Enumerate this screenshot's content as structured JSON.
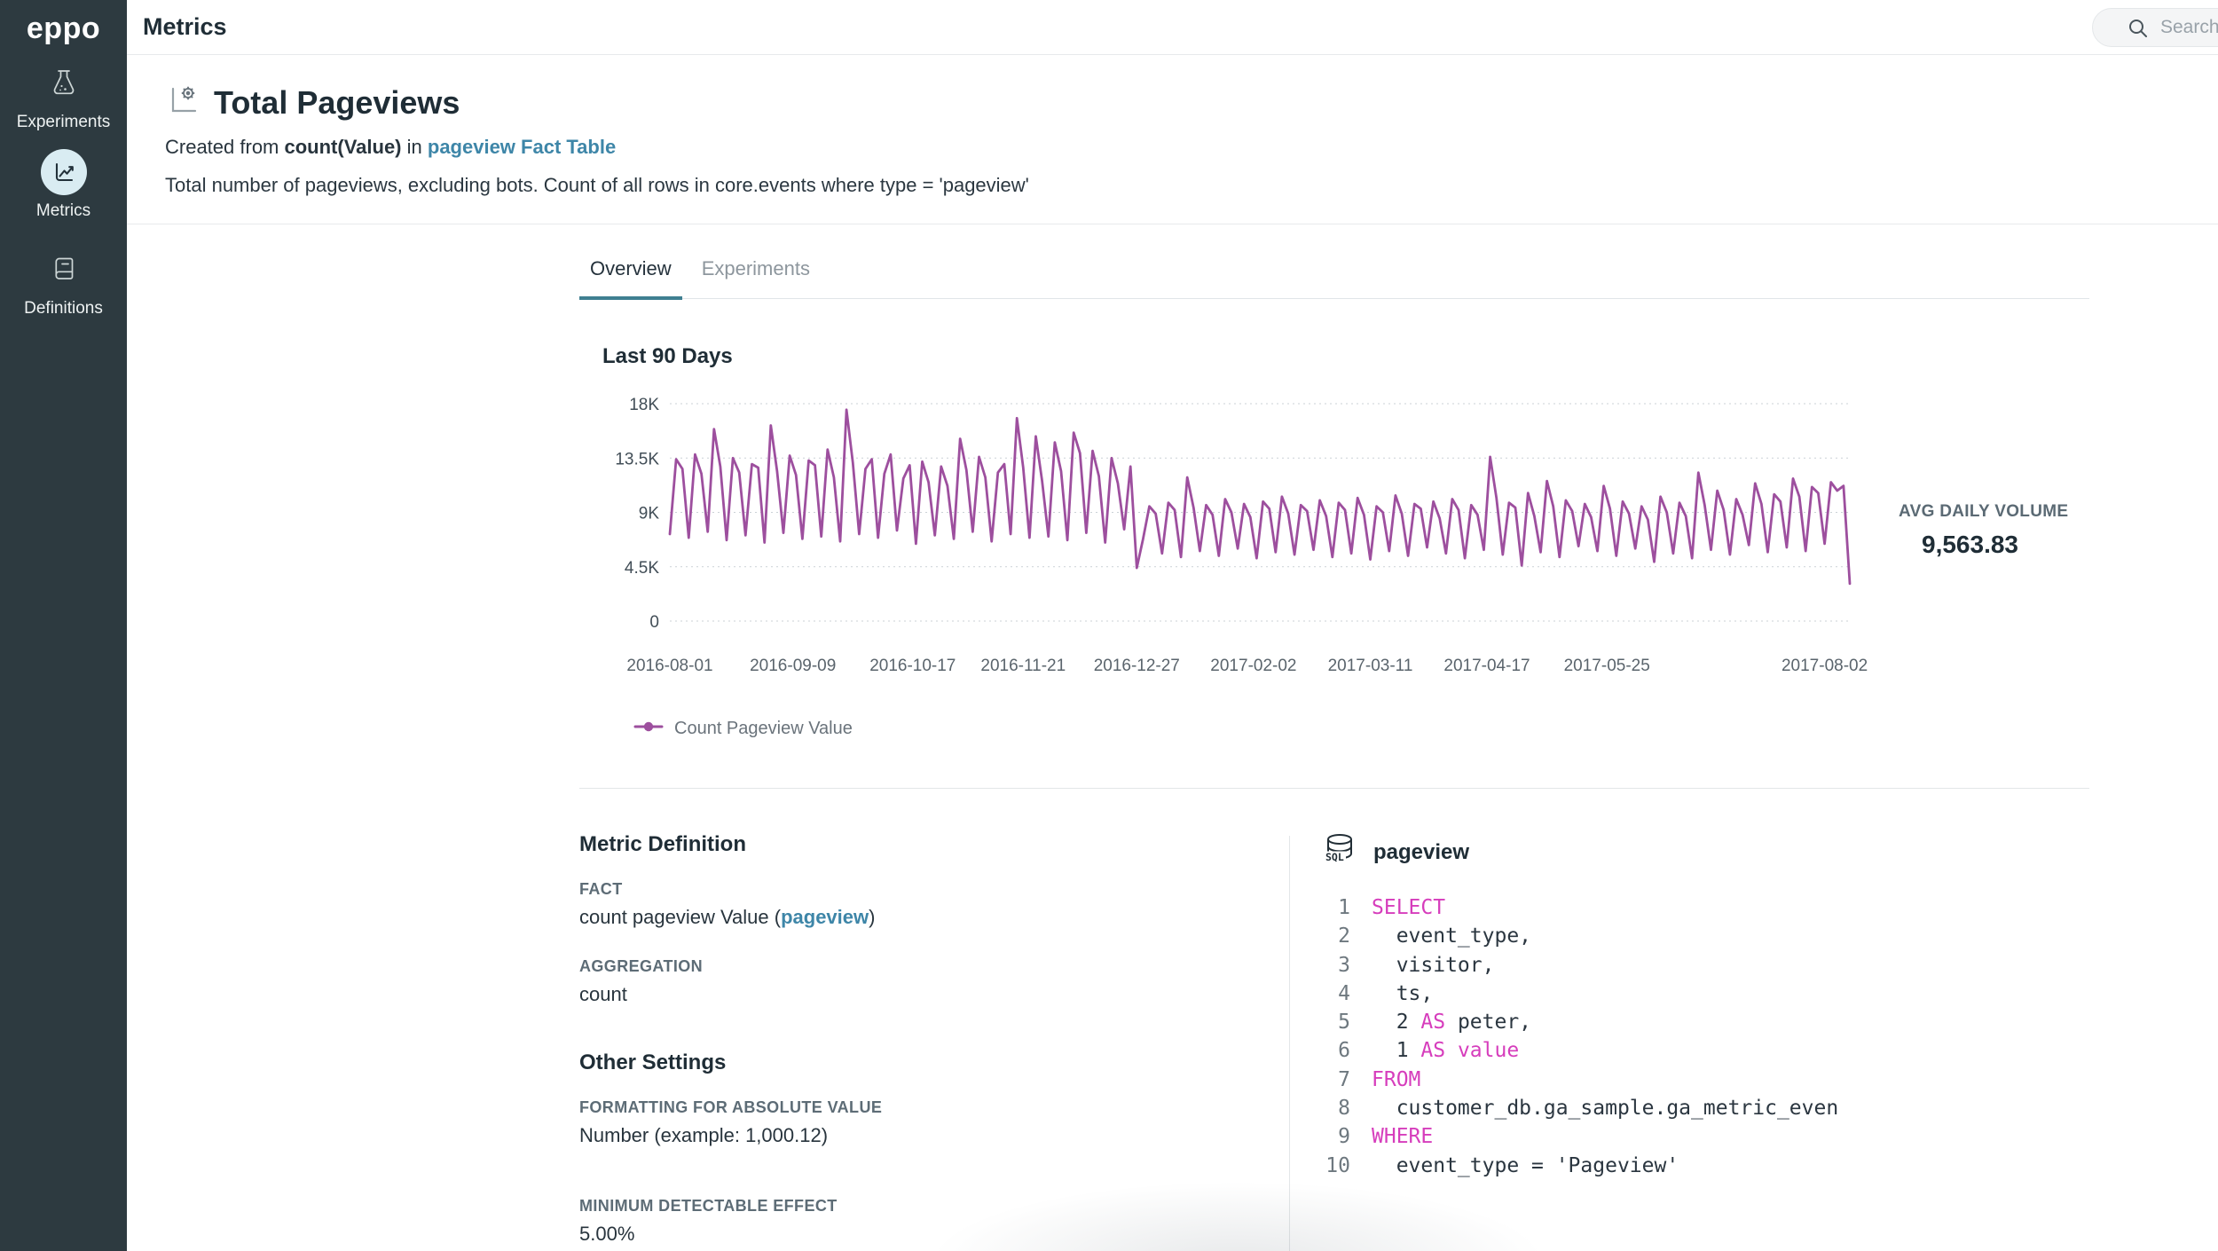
{
  "accent_colors": {
    "sidebar_bg": "#2d3a40",
    "active_nav_circle": "#d9ecf2",
    "series_purple": "#9d4f9e",
    "tab_underline_teal": "#3f7f91",
    "link_blue": "#3e86a8",
    "sql_keyword_pink": "#d63dbc"
  },
  "icons": [
    "flask-icon",
    "line-chart-icon",
    "book-icon",
    "search-icon",
    "metric-axis-gear-icon",
    "database-sql-icon",
    "legend-line-dot-marker"
  ],
  "sidebar": {
    "logo": "eppo",
    "items": [
      {
        "label": "Experiments",
        "active": false
      },
      {
        "label": "Metrics",
        "active": true
      },
      {
        "label": "Definitions",
        "active": false
      }
    ]
  },
  "topbar": {
    "title": "Metrics",
    "search_placeholder": "Search"
  },
  "metric_header": {
    "title": "Total Pageviews",
    "created_prefix": "Created from ",
    "created_fact": "count(Value)",
    "created_mid": " in ",
    "created_link": "pageview Fact Table",
    "description": "Total number of pageviews, excluding bots. Count of all rows in core.events where type = 'pageview'"
  },
  "tabs": [
    {
      "label": "Overview",
      "active": true
    },
    {
      "label": "Experiments",
      "active": false
    }
  ],
  "stats": {
    "avg_label": "AVG DAILY VOLUME",
    "avg_value": "9,563.83"
  },
  "chart_data": {
    "type": "line",
    "title": "Last 90 Days",
    "xlabel": "",
    "ylabel": "",
    "ylim": [
      0,
      18000
    ],
    "grid": "horizontal-dotted",
    "legend_position": "bottom-left",
    "x_start": "2016-08-01",
    "x_step_days": 2,
    "x_ticks": [
      "2016-08-01",
      "2016-09-09",
      "2016-10-17",
      "2016-11-21",
      "2016-12-27",
      "2017-02-02",
      "2017-03-11",
      "2017-04-17",
      "2017-05-25",
      "2017-08-02"
    ],
    "y_ticks": [
      {
        "value": 0,
        "label": "0"
      },
      {
        "value": 4500,
        "label": "4.5K"
      },
      {
        "value": 9000,
        "label": "9K"
      },
      {
        "value": 13500,
        "label": "13.5K"
      },
      {
        "value": 18000,
        "label": "18K"
      }
    ],
    "series": [
      {
        "name": "Count Pageview Value",
        "color": "#9d4f9e",
        "values": [
          7200,
          13400,
          12600,
          6900,
          13800,
          12200,
          7400,
          15900,
          12800,
          6700,
          13500,
          12300,
          7100,
          13000,
          12700,
          6500,
          16200,
          12400,
          7300,
          13700,
          12100,
          6800,
          13300,
          12900,
          7000,
          14200,
          11900,
          6600,
          17500,
          13100,
          7200,
          12600,
          13400,
          6900,
          12200,
          13800,
          7500,
          11800,
          12900,
          6400,
          13200,
          11500,
          7100,
          12800,
          11200,
          6800,
          15100,
          12500,
          7400,
          13600,
          11900,
          6600,
          12300,
          13000,
          7200,
          16800,
          12700,
          6900,
          15300,
          11600,
          7000,
          14800,
          12400,
          6700,
          15600,
          13900,
          7300,
          14100,
          12000,
          6500,
          13500,
          11400,
          7600,
          12800,
          4400,
          6800,
          9500,
          8900,
          5600,
          9800,
          9200,
          5300,
          11900,
          9400,
          5800,
          9600,
          8800,
          5400,
          10100,
          9000,
          6000,
          9700,
          8600,
          5200,
          9900,
          9300,
          5700,
          10300,
          8900,
          5500,
          9600,
          9100,
          5900,
          10000,
          8700,
          5300,
          9800,
          9200,
          5600,
          10200,
          8800,
          5100,
          9500,
          9000,
          5800,
          10400,
          8900,
          5400,
          9700,
          9300,
          6100,
          9900,
          8500,
          5600,
          10100,
          9200,
          5200,
          9600,
          8800,
          5900,
          13600,
          10200,
          5500,
          9800,
          9400,
          4600,
          10600,
          8700,
          5700,
          11600,
          9500,
          5300,
          10000,
          9100,
          6200,
          9700,
          8600,
          5800,
          11200,
          9300,
          5400,
          9900,
          8900,
          6000,
          9500,
          8400,
          4900,
          10300,
          9000,
          5600,
          9800,
          8700,
          5200,
          12300,
          9600,
          5900,
          10800,
          9200,
          5500,
          10100,
          8800,
          6300,
          11400,
          9700,
          5700,
          10500,
          9900,
          6100,
          11800,
          10300,
          5800,
          11100,
          10600,
          6400,
          11500,
          10800,
          11200,
          3100
        ]
      }
    ]
  },
  "definition": {
    "heading": "Metric Definition",
    "fact_label": "FACT",
    "fact_pre": "count pageview Value (",
    "fact_link": "pageview",
    "fact_post": ")",
    "aggregation_label": "AGGREGATION",
    "aggregation_value": "count",
    "other_heading": "Other Settings",
    "formatting_label": "FORMATTING FOR ABSOLUTE VALUE",
    "formatting_value": "Number (example: 1,000.12)",
    "mde_label": "MINIMUM DETECTABLE EFFECT",
    "mde_value": "5.00%"
  },
  "sql_panel": {
    "title": "pageview",
    "lines": [
      [
        {
          "t": "k",
          "v": "SELECT"
        }
      ],
      [
        {
          "t": "p",
          "v": "  event_type,"
        }
      ],
      [
        {
          "t": "p",
          "v": "  visitor,"
        }
      ],
      [
        {
          "t": "p",
          "v": "  ts,"
        }
      ],
      [
        {
          "t": "p",
          "v": "  2 "
        },
        {
          "t": "k",
          "v": "AS"
        },
        {
          "t": "p",
          "v": " peter,"
        }
      ],
      [
        {
          "t": "p",
          "v": "  1 "
        },
        {
          "t": "k",
          "v": "AS"
        },
        {
          "t": "p",
          "v": " "
        },
        {
          "t": "k",
          "v": "value"
        }
      ],
      [
        {
          "t": "k",
          "v": "FROM"
        }
      ],
      [
        {
          "t": "p",
          "v": "  customer_db.ga_sample.ga_metric_even"
        }
      ],
      [
        {
          "t": "k",
          "v": "WHERE"
        }
      ],
      [
        {
          "t": "p",
          "v": "  event_type = 'Pageview'"
        }
      ]
    ]
  }
}
